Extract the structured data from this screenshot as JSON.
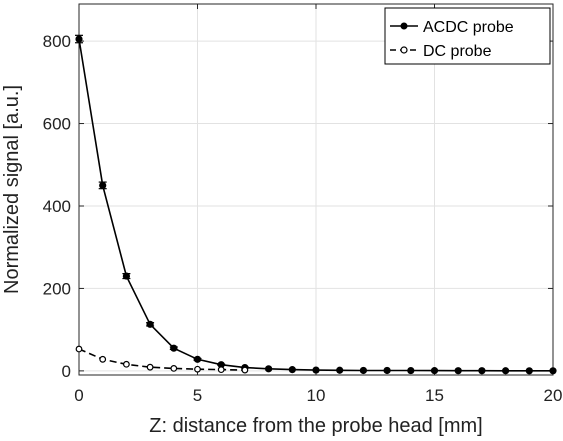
{
  "chart_data": {
    "type": "line",
    "title": "",
    "xlabel": "Z: distance from the probe head [mm]",
    "ylabel": "Normalized signal [a.u.]",
    "xlim": [
      0,
      20
    ],
    "ylim": [
      -10,
      890
    ],
    "xticks": [
      0,
      5,
      10,
      15,
      20
    ],
    "yticks": [
      0,
      200,
      400,
      600,
      800
    ],
    "grid": true,
    "legend": "top-right",
    "series": [
      {
        "name": "ACDC probe",
        "line_style": "solid",
        "marker": "filled-circle",
        "color": "#000000",
        "x": [
          0,
          1,
          2,
          3,
          4,
          5,
          6,
          7,
          8,
          9,
          10,
          11,
          12,
          13,
          14,
          15,
          16,
          17,
          18,
          19,
          20
        ],
        "y": [
          805,
          450,
          230,
          113,
          55,
          28,
          15,
          8,
          5,
          3,
          2,
          1.5,
          1,
          1,
          0.8,
          0.6,
          0.5,
          0.4,
          0.3,
          0.2,
          0.2
        ],
        "error": [
          9,
          8,
          6,
          4,
          3,
          2,
          1,
          1,
          0,
          0,
          0,
          0,
          0,
          0,
          0,
          0,
          0,
          0,
          0,
          0,
          0
        ]
      },
      {
        "name": "DC probe",
        "line_style": "dashed",
        "marker": "open-circle",
        "color": "#000000",
        "x": [
          0,
          1,
          2,
          3,
          4,
          5,
          6,
          7
        ],
        "y": [
          53,
          28,
          16,
          9,
          6,
          4,
          3,
          2
        ]
      }
    ]
  }
}
